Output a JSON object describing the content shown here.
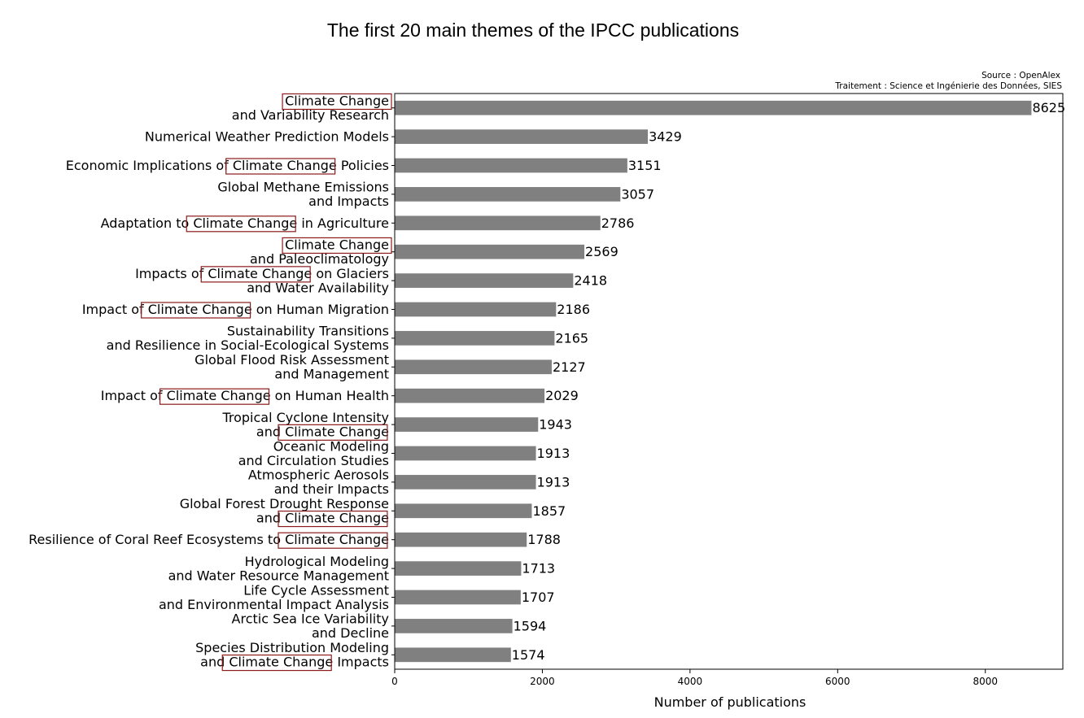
{
  "chart_data": {
    "type": "bar",
    "orientation": "horizontal",
    "title": "The first 20 main themes of the IPCC publications",
    "source_lines": [
      "Source : OpenAlex",
      "Traitement : Science et Ingénierie des Données, SIES"
    ],
    "xlabel": "Number of publications",
    "ylabel": "",
    "xlim": [
      0,
      9050
    ],
    "xticks": [
      0,
      2000,
      4000,
      6000,
      8000
    ],
    "bar_color": "#808080",
    "highlight_color": "#8b1a1a",
    "highlight_term": "Climate Change",
    "grid": false,
    "categories": [
      [
        "Climate Change",
        "and Variability Research"
      ],
      [
        "Numerical Weather Prediction Models"
      ],
      [
        "Economic Implications of Climate Change Policies"
      ],
      [
        "Global Methane Emissions",
        "and Impacts"
      ],
      [
        "Adaptation to Climate Change in Agriculture"
      ],
      [
        "Climate Change",
        "and Paleoclimatology"
      ],
      [
        "Impacts of Climate Change on Glaciers",
        "and Water Availability"
      ],
      [
        "Impact of Climate Change on Human Migration"
      ],
      [
        "Sustainability Transitions",
        "and Resilience in Social-Ecological Systems"
      ],
      [
        "Global Flood Risk Assessment",
        "and Management"
      ],
      [
        "Impact of Climate Change on Human Health"
      ],
      [
        "Tropical Cyclone Intensity",
        "and Climate Change"
      ],
      [
        "Oceanic Modeling",
        "and Circulation Studies"
      ],
      [
        "Atmospheric Aerosols",
        "and their Impacts"
      ],
      [
        "Global Forest Drought Response",
        "and Climate Change"
      ],
      [
        "Resilience of Coral Reef Ecosystems to Climate Change"
      ],
      [
        "Hydrological Modeling",
        "and Water Resource Management"
      ],
      [
        "Life Cycle Assessment",
        "and Environmental Impact Analysis"
      ],
      [
        "Arctic Sea Ice Variability",
        "and Decline"
      ],
      [
        "Species Distribution Modeling",
        "and Climate Change Impacts"
      ]
    ],
    "values": [
      8625,
      3429,
      3151,
      3057,
      2786,
      2569,
      2418,
      2186,
      2165,
      2127,
      2029,
      1943,
      1913,
      1913,
      1857,
      1788,
      1713,
      1707,
      1594,
      1574
    ]
  }
}
